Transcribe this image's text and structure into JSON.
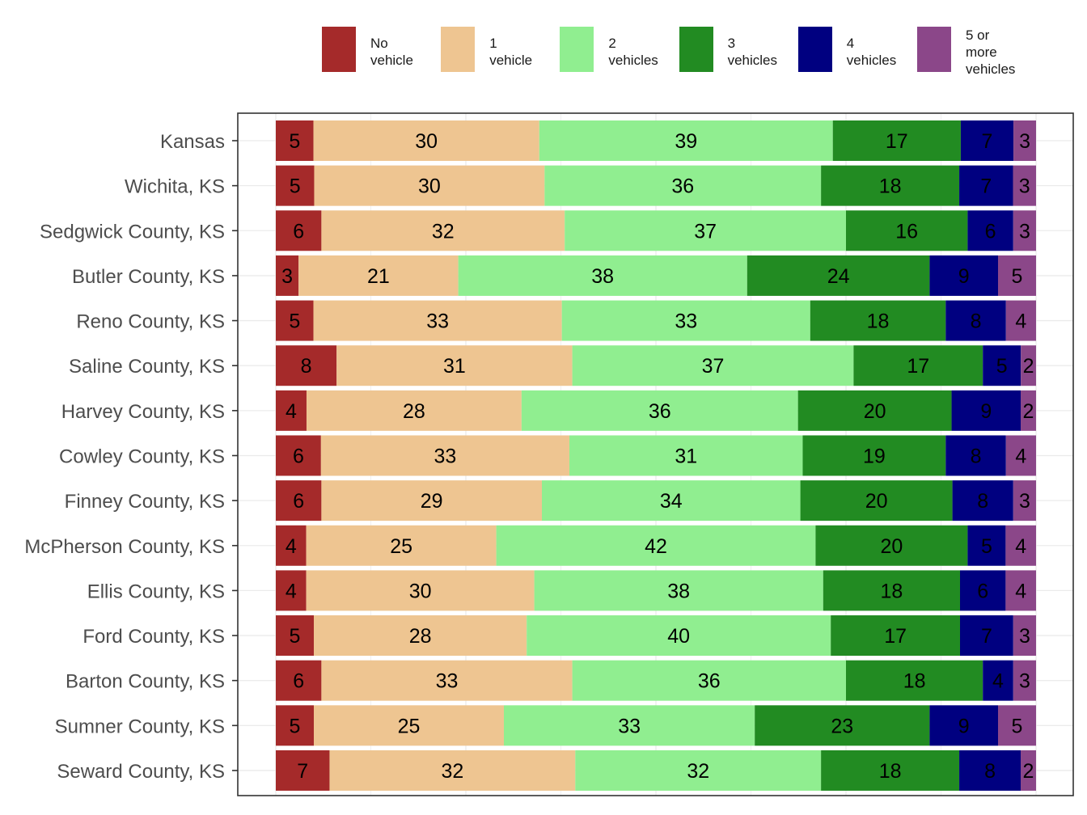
{
  "chart_data": {
    "type": "bar",
    "orientation": "horizontal",
    "stacked": true,
    "title": "",
    "xlabel": "",
    "ylabel": "",
    "legend_position": "top",
    "grid": true,
    "categories": [
      "Kansas",
      "Wichita, KS",
      "Sedgwick County, KS",
      "Butler County, KS",
      "Reno County, KS",
      "Saline County, KS",
      "Harvey County, KS",
      "Cowley County, KS",
      "Finney County, KS",
      "McPherson County, KS",
      "Ellis County, KS",
      "Ford County, KS",
      "Barton County, KS",
      "Sumner County, KS",
      "Seward County, KS"
    ],
    "series": [
      {
        "name": "No vehicle",
        "legend_lines": [
          "No",
          "vehicle"
        ],
        "color": "#a52a2a",
        "values": [
          5,
          5,
          6,
          3,
          5,
          8,
          4,
          6,
          6,
          4,
          4,
          5,
          6,
          5,
          7
        ]
      },
      {
        "name": "1 vehicle",
        "legend_lines": [
          "1",
          "vehicle"
        ],
        "color": "#eec591",
        "values": [
          30,
          30,
          32,
          21,
          33,
          31,
          28,
          33,
          29,
          25,
          30,
          28,
          33,
          25,
          32
        ]
      },
      {
        "name": "2 vehicles",
        "legend_lines": [
          "2",
          "vehicles"
        ],
        "color": "#90ee90",
        "values": [
          39,
          36,
          37,
          38,
          33,
          37,
          36,
          31,
          34,
          42,
          38,
          40,
          36,
          33,
          32
        ]
      },
      {
        "name": "3 vehicles",
        "legend_lines": [
          "3",
          "vehicles"
        ],
        "color": "#228b22",
        "values": [
          17,
          18,
          16,
          24,
          18,
          17,
          20,
          19,
          20,
          20,
          18,
          17,
          18,
          23,
          18
        ]
      },
      {
        "name": "4 vehicles",
        "legend_lines": [
          "4",
          "vehicles"
        ],
        "color": "#000080",
        "values": [
          7,
          7,
          6,
          9,
          8,
          5,
          9,
          8,
          8,
          5,
          6,
          7,
          4,
          9,
          8
        ]
      },
      {
        "name": "5 or more vehicles",
        "legend_lines": [
          "5 or",
          "more",
          "vehicles"
        ],
        "color": "#8b4789",
        "values": [
          3,
          3,
          3,
          5,
          4,
          2,
          2,
          4,
          3,
          4,
          4,
          3,
          3,
          5,
          2
        ]
      }
    ]
  }
}
